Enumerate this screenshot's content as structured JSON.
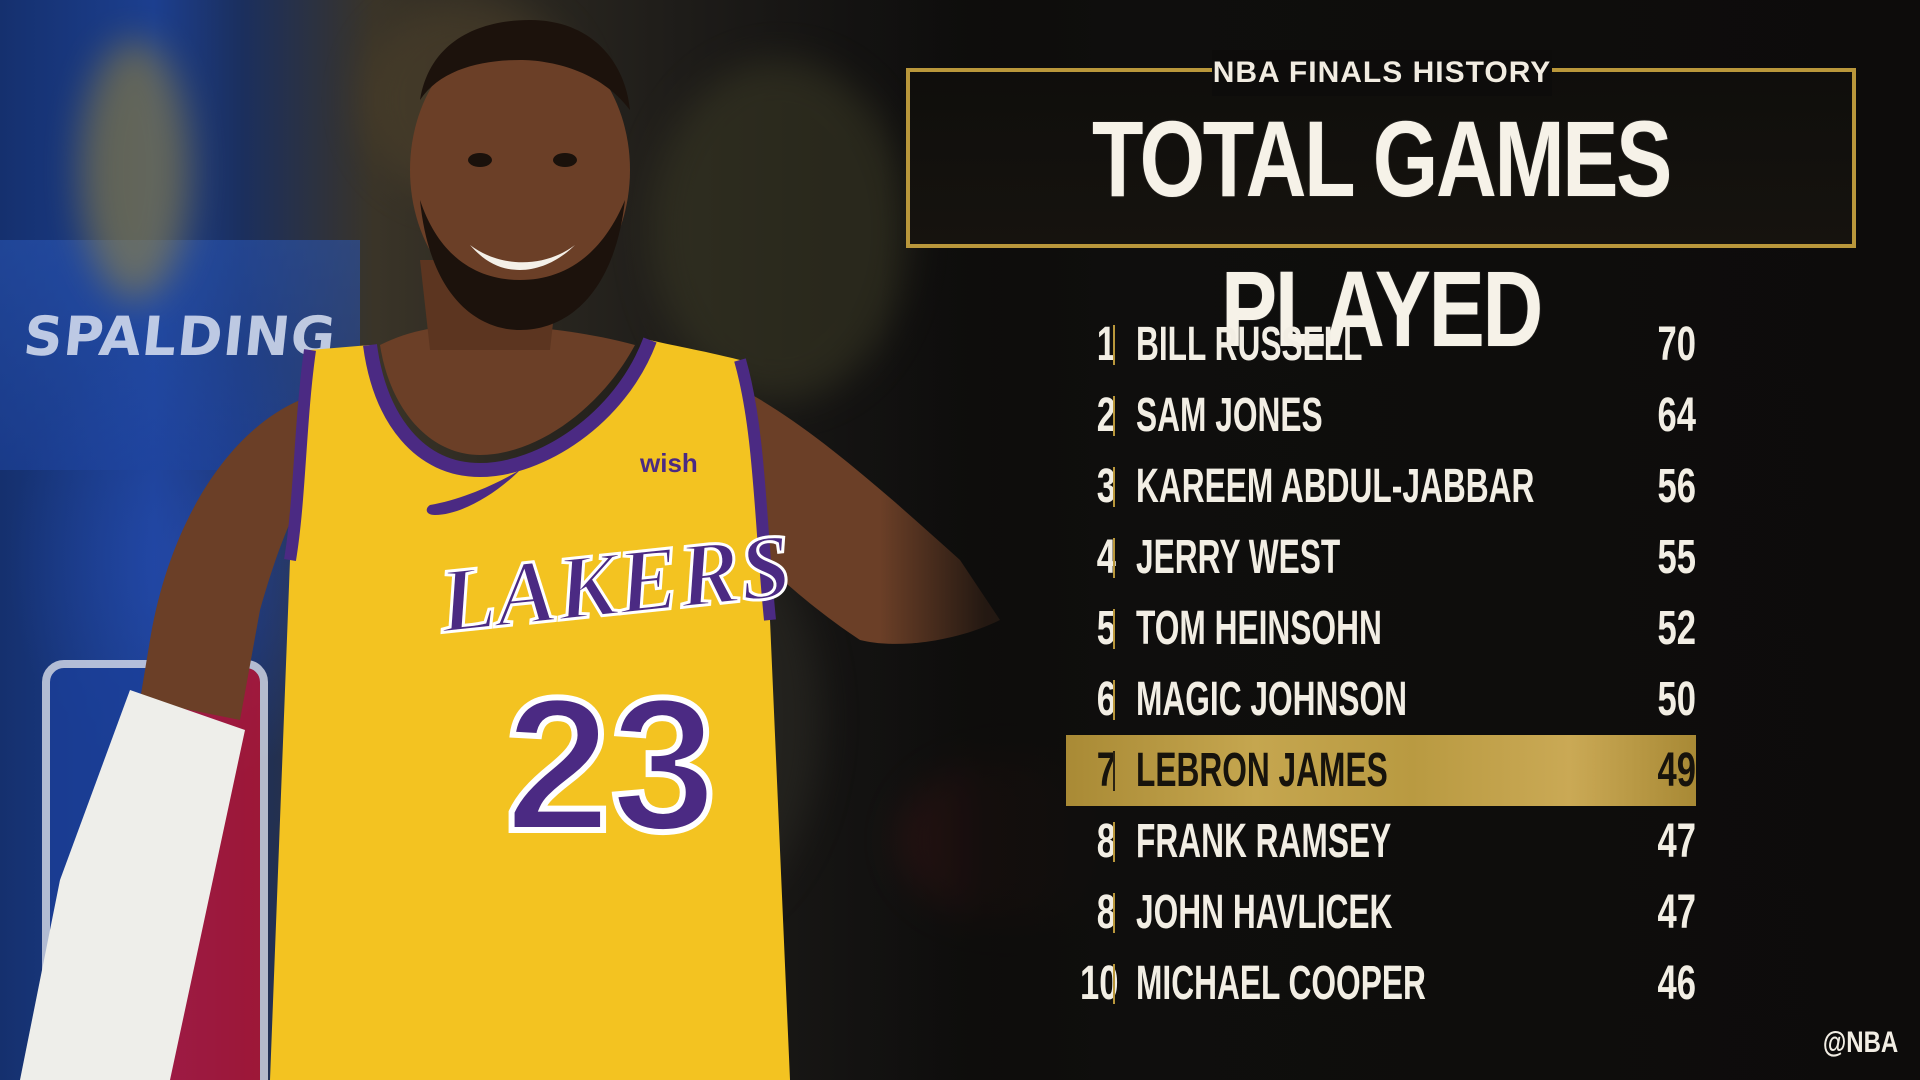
{
  "graphic": {
    "kicker": "NBA FINALS HISTORY",
    "title": "TOTAL GAMES PLAYED",
    "handle": "@NBA"
  },
  "photo": {
    "arena_sign": "SPALDING",
    "jersey_team": "LAKERS",
    "jersey_number": "23",
    "jersey_sponsor": "wish"
  },
  "rankings": [
    {
      "rank": "1",
      "name": "BILL RUSSELL",
      "value": "70"
    },
    {
      "rank": "2",
      "name": "SAM JONES",
      "value": "64"
    },
    {
      "rank": "3",
      "name": "KAREEM ABDUL-JABBAR",
      "value": "56"
    },
    {
      "rank": "4",
      "name": "JERRY WEST",
      "value": "55"
    },
    {
      "rank": "5",
      "name": "TOM HEINSOHN",
      "value": "52"
    },
    {
      "rank": "6",
      "name": "MAGIC JOHNSON",
      "value": "50"
    },
    {
      "rank": "7",
      "name": "LEBRON JAMES",
      "value": "49"
    },
    {
      "rank": "8",
      "name": "FRANK RAMSEY",
      "value": "47"
    },
    {
      "rank": "8",
      "name": "JOHN HAVLICEK",
      "value": "47"
    },
    {
      "rank": "10",
      "name": "MICHAEL COOPER",
      "value": "46"
    }
  ],
  "colors": {
    "gold": "#b9973b",
    "highlight_gold": "#c5a64f",
    "jersey_yellow": "#f3c321",
    "jersey_purple": "#4b2a83",
    "background": "#0d0c0b"
  }
}
